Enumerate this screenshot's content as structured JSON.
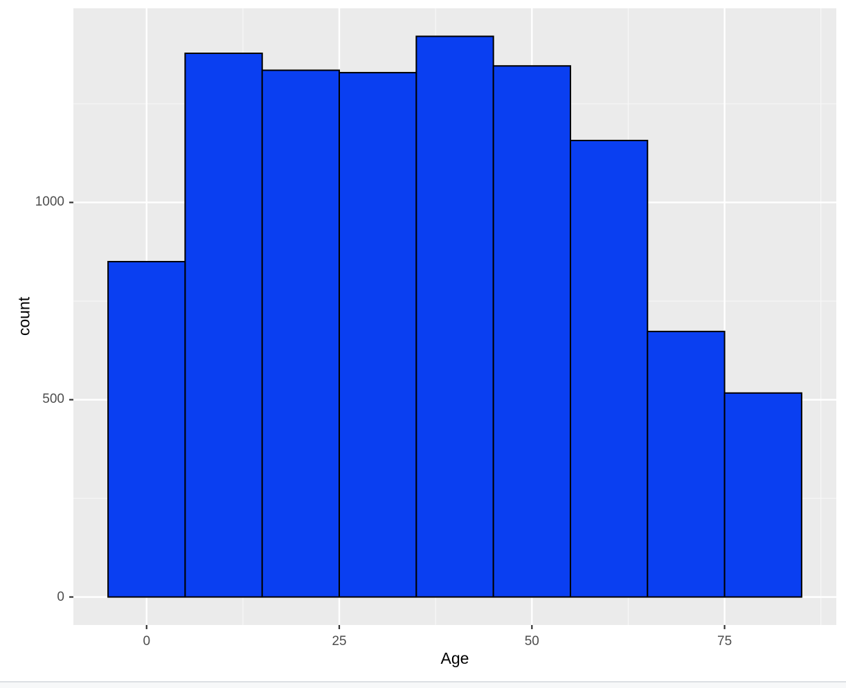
{
  "chart_data": {
    "type": "bar",
    "subtype": "histogram",
    "title": "",
    "xlabel": "Age",
    "ylabel": "count",
    "bin_width": 10,
    "bin_edges": [
      -5,
      5,
      15,
      25,
      35,
      45,
      55,
      65,
      75,
      85
    ],
    "categories": [
      0,
      10,
      20,
      30,
      40,
      50,
      60,
      70,
      80
    ],
    "values": [
      850,
      1378,
      1335,
      1329,
      1421,
      1346,
      1157,
      673,
      517
    ],
    "x_tick_labels": [
      "0",
      "25",
      "50",
      "75"
    ],
    "x_tick_values": [
      0,
      25,
      50,
      75
    ],
    "y_tick_labels": [
      "0",
      "500",
      "1000"
    ],
    "y_tick_values": [
      0,
      500,
      1000
    ],
    "x_minor_gridlines": [
      12.5,
      37.5,
      62.5,
      87.5
    ],
    "y_minor_gridlines": [
      250,
      750,
      1250
    ],
    "xlim": [
      -9.5,
      89.5
    ],
    "ylim": [
      -71,
      1492
    ],
    "grid": "on",
    "legend_position": "none",
    "colors": {
      "bar_fill": "#0a3ff1",
      "bar_stroke": "#000000",
      "panel_background": "#ebebeb",
      "gridline_major": "#ffffff",
      "gridline_minor": "#f7f7f7",
      "tick_mark": "#333333",
      "tick_label": "#4d4d4d",
      "axis_title": "#000000",
      "figure_background": "#ffffff"
    }
  },
  "window": {
    "bottom_line_color": "#dcdfe3",
    "bottom_strip_color": "#f7f8f9"
  }
}
